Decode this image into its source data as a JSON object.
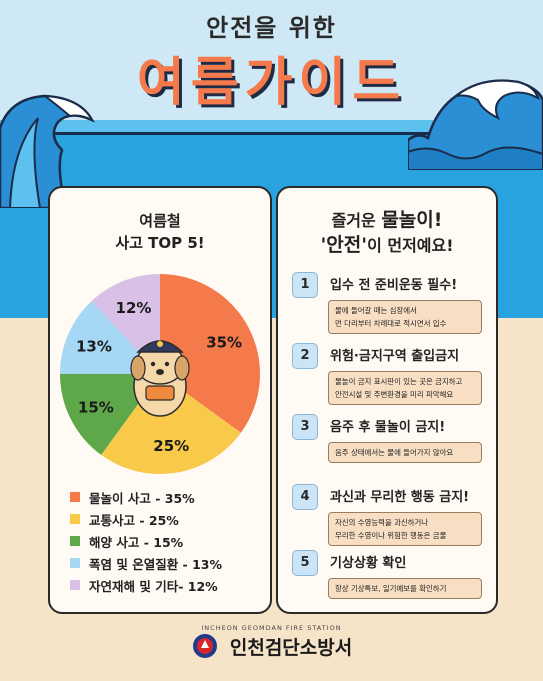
{
  "header": {
    "subtitle": "안전을 위한",
    "title": "여름가이드"
  },
  "left_card": {
    "title_line1": "여름철",
    "title_line2": "사고 TOP 5!"
  },
  "chart_data": {
    "type": "pie",
    "categories": [
      "물놀이 사고",
      "교통사고",
      "해양 사고",
      "폭염 및 온열질환",
      "자연재해 및 기타"
    ],
    "values": [
      35,
      25,
      15,
      13,
      12
    ],
    "labels": [
      "35%",
      "25%",
      "15%",
      "13%",
      "12%"
    ],
    "colors": [
      "#f47a4c",
      "#f9c94a",
      "#5fa84a",
      "#a6d8f5",
      "#d9c0e6"
    ]
  },
  "legend": [
    {
      "label": "물놀이 사고 - 35%",
      "color": "#f47a4c"
    },
    {
      "label": "교통사고 - 25%",
      "color": "#f9c94a"
    },
    {
      "label": "해양 사고 - 15%",
      "color": "#5fa84a"
    },
    {
      "label": "폭염 및 온열질환 - 13%",
      "color": "#a6d8f5"
    },
    {
      "label": "자연재해 및 기타- 12%",
      "color": "#d9c0e6"
    }
  ],
  "right_card": {
    "title_pre": "즐거운 ",
    "title_em": "물놀이!",
    "title2_em": "'안전'",
    "title2_post": "이 먼저예요!",
    "rules": [
      {
        "num": "1",
        "head": "입수 전 준비운동 필수!",
        "note1": "물에 들어갈 때는 심장에서",
        "note2": "먼 다리부터 차례대로 적시면서 입수"
      },
      {
        "num": "2",
        "head": "위험·금지구역 출입금지",
        "note1": "물놀이 금지 표시판이 있는 곳은 금지하고",
        "note2": "안전시설 및 주변환경을 미리 파악해요"
      },
      {
        "num": "3",
        "head": "음주 후 물놀이 금지!",
        "note1": "음주 상태에서는 물에 들어가지 않아요",
        "note2": ""
      },
      {
        "num": "4",
        "head": "과신과 무리한 행동 금지!",
        "note1": "자신의 수영능력을 과신하거나",
        "note2": "무리한 수영이나 위험한 행동은 금물"
      },
      {
        "num": "5",
        "head": "기상상황 확인",
        "note1": "항상 기상특보, 일기예보를 확인하기",
        "note2": ""
      }
    ]
  },
  "footer": {
    "org_en": "INCHEON GEOMDAN FIRE STATION",
    "org_kr": "인천검단소방서"
  }
}
